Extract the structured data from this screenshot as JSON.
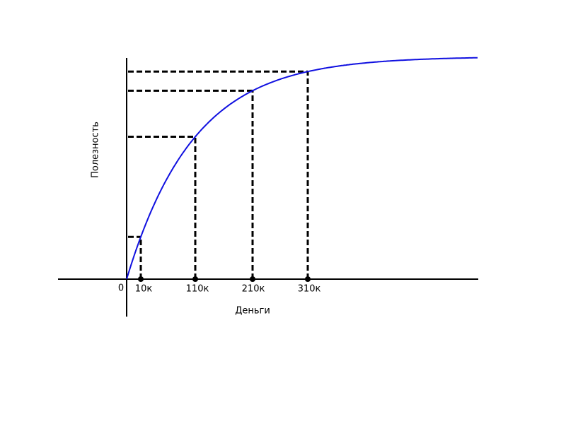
{
  "y_axis_label": "Полезность",
  "x_axis_label": "Деньги",
  "origin_label": "0",
  "x_points": [
    "10к",
    "110к",
    "210к",
    "310к"
  ]
}
